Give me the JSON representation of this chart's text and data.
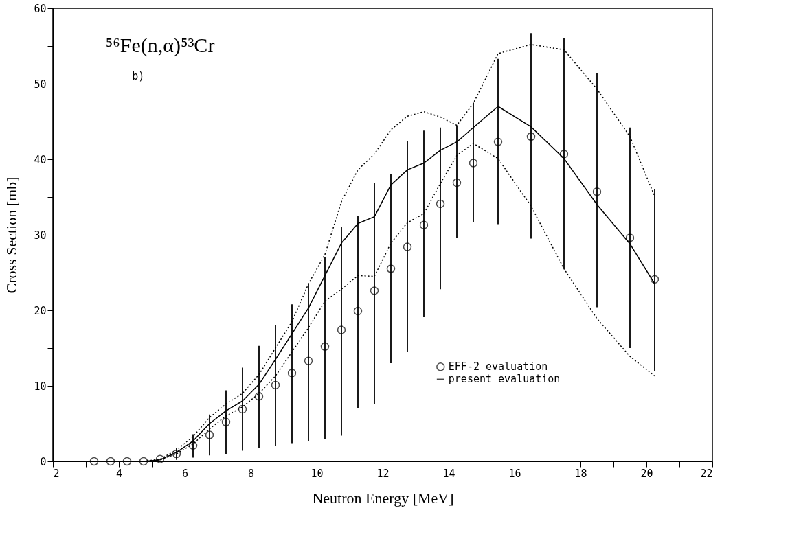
{
  "chart_data": {
    "type": "scatter",
    "title": "⁵⁶Fe(n,α)⁵³Cr",
    "xlabel": "Neutron Energy [MeV]",
    "ylabel": "Cross Section [mb]",
    "annotations": [
      "b)"
    ],
    "xlim": [
      2,
      22
    ],
    "ylim": [
      0,
      60
    ],
    "xticks": [
      2,
      {
        "value": 3,
        "label": null
      },
      4,
      {
        "value": 5,
        "label": null
      },
      6,
      {
        "value": 7,
        "label": null
      },
      8,
      {
        "value": 9,
        "label": null
      },
      10,
      {
        "value": 11,
        "label": null
      },
      12,
      {
        "value": 13,
        "label": null
      },
      14,
      {
        "value": 15,
        "label": null
      },
      16,
      {
        "value": 17,
        "label": null
      },
      18,
      {
        "value": 19,
        "label": null
      },
      20,
      {
        "value": 21,
        "label": null
      },
      22
    ],
    "yticks": [
      0,
      {
        "value": 5,
        "label": null
      },
      10,
      {
        "value": 15,
        "label": null
      },
      20,
      {
        "value": 25,
        "label": null
      },
      30,
      {
        "value": 35,
        "label": null
      },
      40,
      {
        "value": 45,
        "label": null
      },
      50,
      {
        "value": 55,
        "label": null
      },
      60
    ],
    "grid": false,
    "legend": "bottom right",
    "series": [
      {
        "name": "EFF-2 evaluation",
        "marker": "circle",
        "color": "#000000",
        "x": [
          3.25,
          3.75,
          4.25,
          4.75,
          5.25,
          5.75,
          6.25,
          6.75,
          7.25,
          7.75,
          8.25,
          8.75,
          9.25,
          9.75,
          10.25,
          10.75,
          11.25,
          11.75,
          12.25,
          12.75,
          13.25,
          13.75,
          14.25,
          14.75,
          15.5,
          16.5,
          17.5,
          18.5,
          19.5,
          20.25
        ],
        "values": [
          0,
          0,
          0,
          0,
          0.3,
          1.0,
          2.1,
          3.5,
          5.2,
          6.9,
          8.6,
          10.1,
          11.7,
          13.3,
          15.2,
          17.4,
          19.9,
          22.6,
          25.5,
          28.4,
          31.3,
          34.1,
          36.9,
          39.5,
          42.3,
          43.0,
          40.7,
          35.7,
          29.6,
          24.1
        ],
        "errors": [
          null,
          null,
          null,
          null,
          null,
          [
            0.2,
            1.8
          ],
          [
            0.5,
            3.6
          ],
          [
            0.8,
            6.2
          ],
          [
            1.0,
            9.4
          ],
          [
            1.4,
            12.4
          ],
          [
            1.8,
            15.3
          ],
          [
            2.1,
            18.1
          ],
          [
            2.4,
            20.8
          ],
          [
            2.7,
            23.6
          ],
          [
            3.0,
            27.1
          ],
          [
            3.4,
            31.0
          ],
          [
            7.0,
            32.5
          ],
          [
            7.6,
            36.9
          ],
          [
            13.0,
            38.0
          ],
          [
            14.5,
            42.4
          ],
          [
            19.1,
            43.8
          ],
          [
            22.8,
            44.2
          ],
          [
            29.6,
            44.5
          ],
          [
            31.7,
            47.5
          ],
          [
            31.4,
            53.3
          ],
          [
            29.5,
            56.7
          ],
          [
            25.6,
            56.0
          ],
          [
            20.4,
            51.4
          ],
          [
            15.0,
            44.2
          ],
          [
            12.0,
            36.0
          ]
        ]
      },
      {
        "name": "present evaluation",
        "type": "line",
        "marker": "none",
        "line_style": "solid",
        "color": "#000000",
        "x": [
          4.75,
          5.25,
          5.75,
          6.25,
          6.75,
          7.25,
          7.75,
          8.25,
          8.75,
          9.25,
          9.75,
          10.25,
          10.75,
          11.25,
          11.75,
          12.25,
          12.75,
          13.25,
          13.75,
          14.25,
          14.75,
          15.5,
          16.5,
          17.5,
          18.5,
          19.5,
          20.25
        ],
        "values": [
          0,
          0.2,
          1.2,
          2.7,
          5.0,
          6.7,
          8.0,
          10.2,
          13.5,
          16.9,
          20.3,
          24.6,
          28.9,
          31.5,
          32.4,
          36.6,
          38.6,
          39.5,
          41.2,
          42.3,
          44.2,
          47.0,
          44.3,
          40.1,
          34.0,
          28.8,
          23.5
        ]
      },
      {
        "type": "line",
        "marker": "none",
        "line_style": "dotted",
        "color": "#000000",
        "x": [
          4.75,
          5.25,
          5.75,
          6.25,
          6.75,
          7.25,
          7.75,
          8.25,
          8.75,
          9.25,
          9.75,
          10.25,
          10.75,
          11.25,
          11.75,
          12.25,
          12.75,
          13.25,
          13.75,
          14.25,
          14.75,
          15.5,
          16.5,
          17.5,
          18.5,
          19.5,
          20.25
        ],
        "values": [
          0,
          0.3,
          1.5,
          3.3,
          5.8,
          7.6,
          9.0,
          11.5,
          15.0,
          18.5,
          23.5,
          27.4,
          34.4,
          38.6,
          40.7,
          43.9,
          45.7,
          46.3,
          45.6,
          44.5,
          47.4,
          54.0,
          55.2,
          54.5,
          49.3,
          43.0,
          35.1
        ]
      },
      {
        "type": "line",
        "marker": "none",
        "line_style": "dotted",
        "color": "#000000",
        "x": [
          4.75,
          5.25,
          5.75,
          6.25,
          6.75,
          7.25,
          7.75,
          8.25,
          8.75,
          9.25,
          9.75,
          10.25,
          10.75,
          11.25,
          11.75,
          12.25,
          12.75,
          13.25,
          13.75,
          14.25,
          14.75,
          15.5,
          16.5,
          17.5,
          18.5,
          19.5,
          20.25
        ],
        "values": [
          0,
          0.2,
          1.0,
          2.3,
          4.3,
          6.0,
          7.2,
          9.0,
          11.3,
          14.5,
          17.7,
          21.2,
          22.8,
          24.6,
          24.5,
          28.9,
          31.6,
          32.8,
          36.8,
          40.5,
          42.1,
          40.1,
          33.8,
          25.5,
          18.9,
          13.9,
          11.3
        ]
      }
    ]
  }
}
